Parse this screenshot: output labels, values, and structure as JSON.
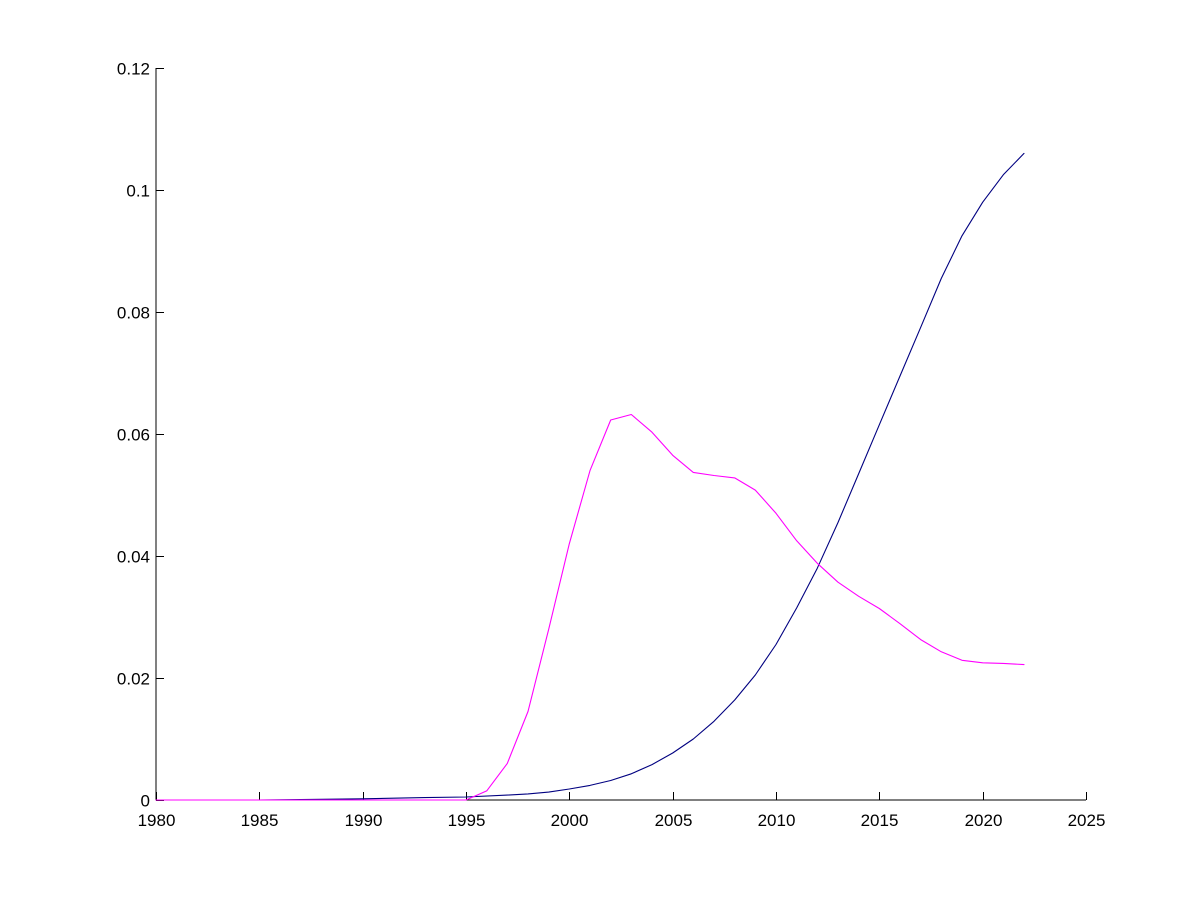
{
  "chart_data": {
    "type": "line",
    "title": "",
    "xlabel": "",
    "ylabel": "",
    "xlim": [
      1980,
      2025
    ],
    "ylim": [
      0,
      0.12
    ],
    "grid": false,
    "legend": "none",
    "x_ticks": [
      1980,
      1985,
      1990,
      1995,
      2000,
      2005,
      2010,
      2015,
      2020,
      2025
    ],
    "x_tick_labels": [
      "1980",
      "1985",
      "1990",
      "1995",
      "2000",
      "2005",
      "2010",
      "2015",
      "2020",
      "2025"
    ],
    "y_ticks": [
      0,
      0.02,
      0.04,
      0.06,
      0.08,
      0.1,
      0.12
    ],
    "y_tick_labels": [
      "0",
      "0.02",
      "0.04",
      "0.06",
      "0.08",
      "0.1",
      "0.12"
    ],
    "series": [
      {
        "color": "#000080",
        "x": [
          1980,
          1985,
          1990,
          1993,
          1995,
          1997,
          1998,
          1999,
          2000,
          2001,
          2002,
          2003,
          2004,
          2005,
          2006,
          2007,
          2008,
          2009,
          2010,
          2011,
          2012,
          2013,
          2014,
          2015,
          2016,
          2017,
          2018,
          2019,
          2020,
          2021,
          2022
        ],
        "values": [
          0.0,
          0.0,
          0.0002,
          0.0004,
          0.0005,
          0.0008,
          0.001,
          0.0013,
          0.0018,
          0.0024,
          0.0032,
          0.0043,
          0.0058,
          0.0077,
          0.01,
          0.0129,
          0.0164,
          0.0205,
          0.0255,
          0.0315,
          0.038,
          0.0455,
          0.0535,
          0.0615,
          0.0695,
          0.0775,
          0.0855,
          0.0925,
          0.098,
          0.1025,
          0.106
        ]
      },
      {
        "color": "#FF00FF",
        "x": [
          1980,
          1985,
          1990,
          1995,
          1996,
          1997,
          1998,
          1999,
          2000,
          2001,
          2002,
          2003,
          2004,
          2005,
          2006,
          2007,
          2008,
          2009,
          2010,
          2011,
          2012,
          2013,
          2014,
          2015,
          2016,
          2017,
          2018,
          2019,
          2020,
          2021,
          2022
        ],
        "values": [
          0.0,
          0.0,
          0.0,
          0.0,
          0.0015,
          0.006,
          0.0145,
          0.028,
          0.042,
          0.054,
          0.0623,
          0.0632,
          0.0603,
          0.0565,
          0.0537,
          0.0532,
          0.0528,
          0.0508,
          0.047,
          0.0425,
          0.0388,
          0.0357,
          0.0334,
          0.0314,
          0.0289,
          0.0263,
          0.0243,
          0.0229,
          0.0225,
          0.0224,
          0.0222
        ]
      }
    ]
  }
}
